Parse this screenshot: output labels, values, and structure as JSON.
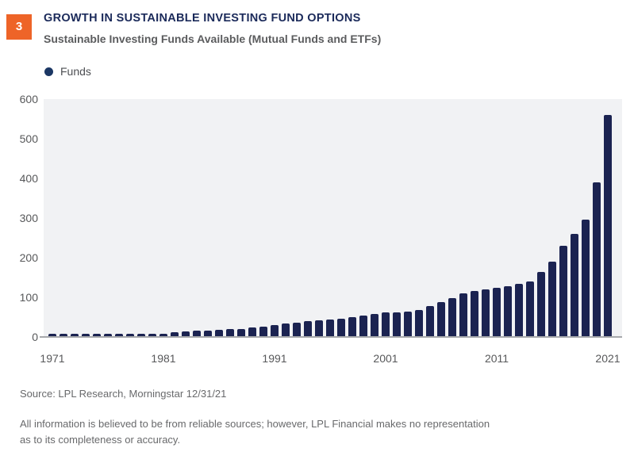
{
  "badge": {
    "number": "3"
  },
  "header": {
    "title": "GROWTH IN SUSTAINABLE INVESTING FUND OPTIONS",
    "subtitle": "Sustainable Investing Funds Available (Mutual Funds and ETFs)"
  },
  "legend": {
    "label": "Funds",
    "dot_color": "#1b3764"
  },
  "chart_data": {
    "type": "bar",
    "title": "Sustainable Investing Funds Available (Mutual Funds and ETFs)",
    "series_name": "Funds",
    "categories": [
      1971,
      1972,
      1973,
      1974,
      1975,
      1976,
      1977,
      1978,
      1979,
      1980,
      1981,
      1982,
      1983,
      1984,
      1985,
      1986,
      1987,
      1988,
      1989,
      1990,
      1991,
      1992,
      1993,
      1994,
      1995,
      1996,
      1997,
      1998,
      1999,
      2000,
      2001,
      2002,
      2003,
      2004,
      2005,
      2006,
      2007,
      2008,
      2009,
      2010,
      2011,
      2012,
      2013,
      2014,
      2015,
      2016,
      2017,
      2018,
      2019,
      2020,
      2021
    ],
    "values": [
      7,
      7,
      7,
      7,
      7,
      7,
      7,
      7,
      7,
      8,
      8,
      11,
      13,
      15,
      16,
      17,
      19,
      20,
      23,
      26,
      29,
      33,
      36,
      39,
      42,
      43,
      46,
      50,
      54,
      58,
      61,
      62,
      64,
      68,
      77,
      87,
      97,
      110,
      116,
      120,
      123,
      128,
      133,
      139,
      163,
      190,
      230,
      260,
      295,
      390,
      560
    ],
    "xlabel": "",
    "ylabel": "",
    "ylim": [
      0,
      600
    ],
    "yticks": [
      0,
      100,
      200,
      300,
      400,
      500,
      600
    ],
    "xticks": [
      1971,
      1981,
      1991,
      2001,
      2011,
      2021
    ],
    "grid": false,
    "legend_position": "top-left",
    "bar_color": "#1b2351",
    "plot_bg": "#f1f2f4"
  },
  "footer": {
    "source": "Source: LPL Research, Morningstar  12/31/21",
    "disclaimer_line1": "All information is believed to be from reliable sources; however, LPL Financial makes no representation",
    "disclaimer_line2": "as to its completeness or accuracy."
  }
}
